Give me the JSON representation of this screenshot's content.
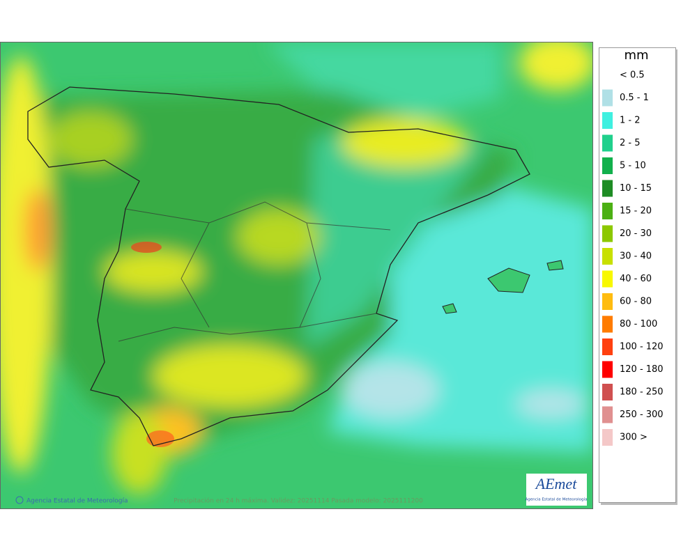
{
  "legend": {
    "title": "mm",
    "items": [
      {
        "label": "< 0.5",
        "color": "#ffffff"
      },
      {
        "label": "0.5 - 1",
        "color": "#b0e0e6"
      },
      {
        "label": "1 - 2",
        "color": "#3ff0e0"
      },
      {
        "label": "2 - 5",
        "color": "#20d08c"
      },
      {
        "label": "5 - 10",
        "color": "#12b04c"
      },
      {
        "label": "10 - 15",
        "color": "#1e8c24"
      },
      {
        "label": "15 - 20",
        "color": "#4cb014"
      },
      {
        "label": "20 - 30",
        "color": "#8cc800"
      },
      {
        "label": "30 - 40",
        "color": "#c8e000"
      },
      {
        "label": "40 - 60",
        "color": "#f8f800"
      },
      {
        "label": "60 - 80",
        "color": "#ffbc10"
      },
      {
        "label": "80 - 100",
        "color": "#ff7c00"
      },
      {
        "label": "100 - 120",
        "color": "#ff4010"
      },
      {
        "label": "120 - 180",
        "color": "#ff0000"
      },
      {
        "label": "180 - 250",
        "color": "#d05050"
      },
      {
        "label": "250 - 300",
        "color": "#e09090"
      },
      {
        "label": "300 >",
        "color": "#f4c8c8"
      }
    ]
  },
  "footer": {
    "copyright": "Agencia Estatal de Meteorología",
    "caption": "Precipitación en 24 h máxima. Validez: 20251114 Pasada modelo: 2025111200"
  },
  "logo": {
    "name": "AEmet",
    "subtitle": "Agencia Estatal de Meteorología"
  }
}
